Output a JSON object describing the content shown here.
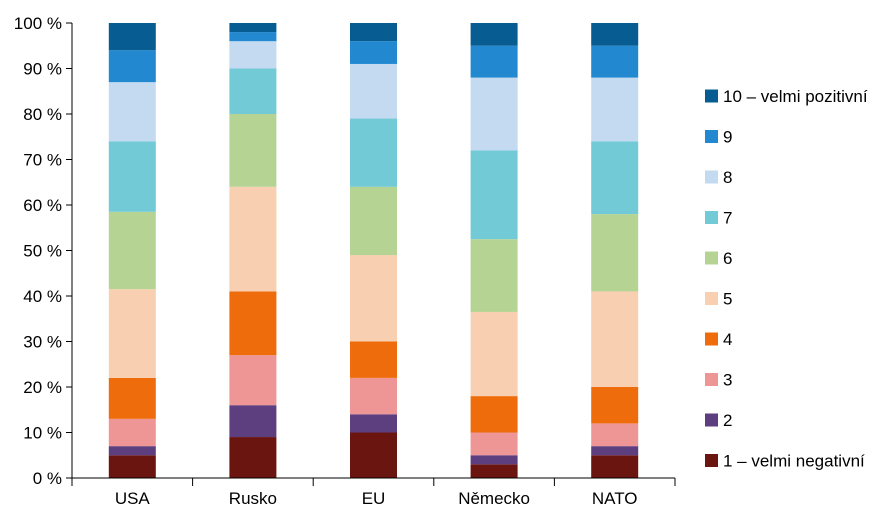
{
  "chart_data": {
    "type": "bar",
    "stacked": true,
    "categories": [
      "USA",
      "Rusko",
      "EU",
      "Německo",
      "NATO"
    ],
    "ylim": [
      0,
      100
    ],
    "yticks": [
      0,
      10,
      20,
      30,
      40,
      50,
      60,
      70,
      80,
      90,
      100
    ],
    "ytick_suffix": " %",
    "grid": false,
    "legend_position": "right",
    "series": [
      {
        "name": "1 – velmi negativní",
        "color": "#6b1510",
        "values": [
          5,
          9,
          10,
          3,
          5
        ]
      },
      {
        "name": "2",
        "color": "#5d3f80",
        "values": [
          2,
          7,
          4,
          2,
          2
        ]
      },
      {
        "name": "3",
        "color": "#ee9595",
        "values": [
          6,
          11,
          8,
          5,
          5
        ]
      },
      {
        "name": "4",
        "color": "#ee6c0b",
        "values": [
          9,
          14,
          8,
          8,
          8
        ]
      },
      {
        "name": "5",
        "color": "#f8cfb1",
        "values": [
          19.5,
          23,
          19,
          18.5,
          21
        ]
      },
      {
        "name": "6",
        "color": "#b5d494",
        "values": [
          17,
          16,
          15,
          16,
          17
        ]
      },
      {
        "name": "7",
        "color": "#71cad6",
        "values": [
          15.5,
          10,
          15,
          19.5,
          16
        ]
      },
      {
        "name": "8",
        "color": "#c3daf1",
        "values": [
          13,
          6,
          12,
          16,
          14
        ]
      },
      {
        "name": "9",
        "color": "#2289d1",
        "values": [
          7,
          2,
          5,
          7,
          7
        ]
      },
      {
        "name": "10 – velmi pozitivní",
        "color": "#075d92",
        "values": [
          6,
          2,
          4,
          5,
          5
        ]
      }
    ]
  }
}
